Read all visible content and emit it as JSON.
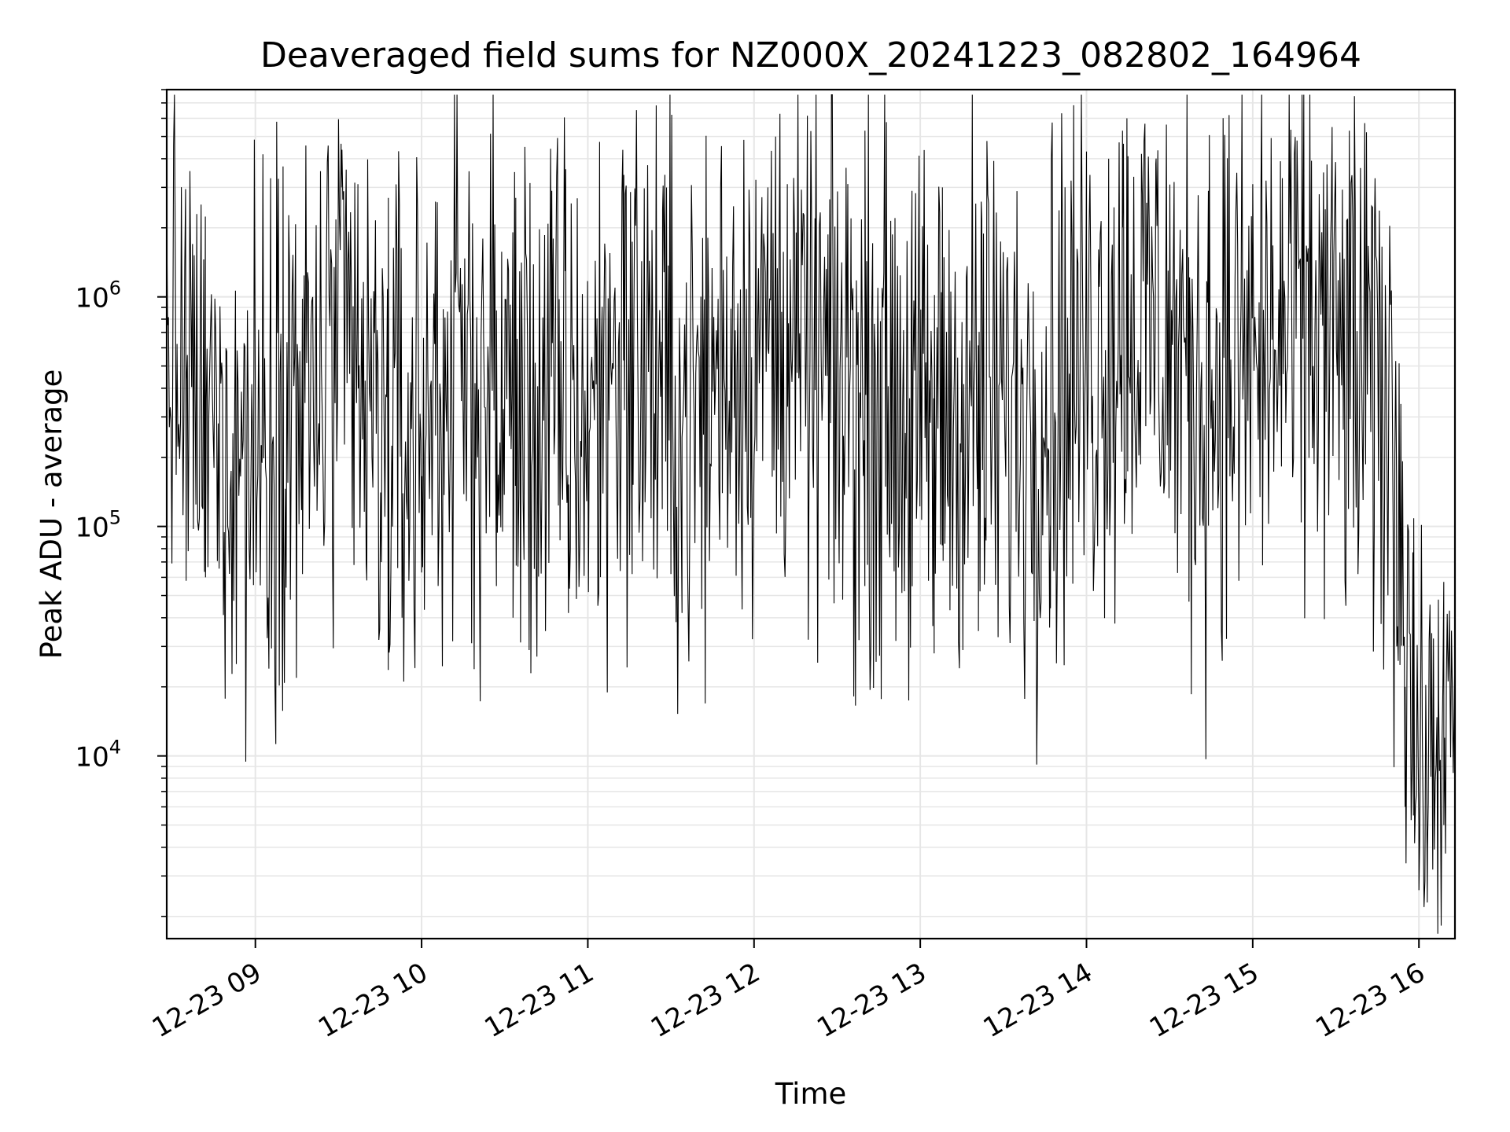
{
  "chart_data": {
    "type": "line",
    "title": "Deaveraged field sums for NZ000X_20241223_082802_164964",
    "xlabel": "Time",
    "ylabel": "Peak ADU - average",
    "yscale": "log",
    "ylim": [
      1600,
      8000000
    ],
    "xlim": [
      "2024-12-23 08:28",
      "2024-12-23 16:13"
    ],
    "grid": true,
    "line_color": "#000000",
    "grid_color": "#e6e6e6",
    "x_ticks": [
      {
        "value": "2024-12-23 09:00",
        "label": "12-23 09"
      },
      {
        "value": "2024-12-23 10:00",
        "label": "12-23 10"
      },
      {
        "value": "2024-12-23 11:00",
        "label": "12-23 11"
      },
      {
        "value": "2024-12-23 12:00",
        "label": "12-23 12"
      },
      {
        "value": "2024-12-23 13:00",
        "label": "12-23 13"
      },
      {
        "value": "2024-12-23 14:00",
        "label": "12-23 14"
      },
      {
        "value": "2024-12-23 15:00",
        "label": "12-23 15"
      },
      {
        "value": "2024-12-23 16:00",
        "label": "12-23 16"
      }
    ],
    "y_ticks": [
      {
        "value": 10000,
        "base": "10",
        "exponent": "4"
      },
      {
        "value": 100000,
        "base": "10",
        "exponent": "5"
      },
      {
        "value": 1000000,
        "base": "10",
        "exponent": "6"
      }
    ],
    "series": [
      {
        "x": [
          "2024-12-23 08:28",
          "2024-12-23 08:40",
          "2024-12-23 08:50",
          "2024-12-23 09:00",
          "2024-12-23 09:10",
          "2024-12-23 09:20",
          "2024-12-23 09:30",
          "2024-12-23 09:40",
          "2024-12-23 09:50",
          "2024-12-23 10:00",
          "2024-12-23 10:10",
          "2024-12-23 10:20",
          "2024-12-23 10:30",
          "2024-12-23 10:40",
          "2024-12-23 10:50",
          "2024-12-23 11:00",
          "2024-12-23 11:10",
          "2024-12-23 11:20",
          "2024-12-23 11:30",
          "2024-12-23 11:40",
          "2024-12-23 11:50",
          "2024-12-23 12:00",
          "2024-12-23 12:10",
          "2024-12-23 12:20",
          "2024-12-23 12:30",
          "2024-12-23 12:40",
          "2024-12-23 12:50",
          "2024-12-23 13:00",
          "2024-12-23 13:10",
          "2024-12-23 13:20",
          "2024-12-23 13:30",
          "2024-12-23 13:40",
          "2024-12-23 13:50",
          "2024-12-23 14:00",
          "2024-12-23 14:10",
          "2024-12-23 14:20",
          "2024-12-23 14:30",
          "2024-12-23 14:40",
          "2024-12-23 14:50",
          "2024-12-23 15:00",
          "2024-12-23 15:10",
          "2024-12-23 15:20",
          "2024-12-23 15:30",
          "2024-12-23 15:40",
          "2024-12-23 15:50",
          "2024-12-23 15:55",
          "2024-12-23 16:00",
          "2024-12-23 16:05",
          "2024-12-23 16:10",
          "2024-12-23 16:13"
        ],
        "values": [
          600000,
          300000,
          250000,
          220000,
          400000,
          350000,
          550000,
          300000,
          200000,
          280000,
          500000,
          450000,
          380000,
          300000,
          320000,
          280000,
          600000,
          550000,
          350000,
          300000,
          600000,
          620000,
          700000,
          500000,
          450000,
          420000,
          400000,
          250000,
          320000,
          380000,
          300000,
          320000,
          450000,
          500000,
          700000,
          800000,
          650000,
          400000,
          500000,
          550000,
          600000,
          800000,
          600000,
          450000,
          300000,
          80000,
          8000,
          10000,
          12000,
          14000
        ],
        "spread": [
          0.55,
          0.5,
          0.55,
          0.65,
          0.6,
          0.6,
          0.6,
          0.6,
          0.6,
          0.6,
          0.6,
          0.6,
          0.6,
          0.6,
          0.6,
          0.6,
          0.6,
          0.6,
          0.6,
          0.6,
          0.6,
          0.55,
          0.55,
          0.55,
          0.6,
          0.6,
          0.6,
          0.6,
          0.6,
          0.6,
          0.6,
          0.6,
          0.6,
          0.6,
          0.6,
          0.6,
          0.6,
          0.6,
          0.6,
          0.6,
          0.6,
          0.6,
          0.6,
          0.6,
          0.6,
          0.6,
          0.45,
          0.4,
          0.4,
          0.4
        ],
        "spikes": [
          {
            "x": "2024-12-23 09:10",
            "value": 3700000
          },
          {
            "x": "2024-12-23 09:31",
            "value": 3000000
          },
          {
            "x": "2024-12-23 09:37",
            "value": 3100000
          },
          {
            "x": "2024-12-23 09:48",
            "value": 2700000
          },
          {
            "x": "2024-12-23 09:52",
            "value": 2500000
          },
          {
            "x": "2024-12-23 10:05",
            "value": 2600000
          },
          {
            "x": "2024-12-23 10:12",
            "value": 3000000
          },
          {
            "x": "2024-12-23 10:34",
            "value": 2700000
          },
          {
            "x": "2024-12-23 10:47",
            "value": 2900000
          },
          {
            "x": "2024-12-23 10:52",
            "value": 3600000
          },
          {
            "x": "2024-12-23 11:13",
            "value": 3400000
          },
          {
            "x": "2024-12-23 11:17",
            "value": 2700000
          },
          {
            "x": "2024-12-23 11:27",
            "value": 2400000
          },
          {
            "x": "2024-12-23 11:48",
            "value": 3200000
          },
          {
            "x": "2024-12-23 12:05",
            "value": 3000000
          },
          {
            "x": "2024-12-23 12:12",
            "value": 3100000
          },
          {
            "x": "2024-12-23 12:22",
            "value": 2200000
          },
          {
            "x": "2024-12-23 12:35",
            "value": 2200000
          },
          {
            "x": "2024-12-23 12:57",
            "value": 2900000
          },
          {
            "x": "2024-12-23 13:08",
            "value": 3000000
          },
          {
            "x": "2024-12-23 13:22",
            "value": 2600000
          },
          {
            "x": "2024-12-23 14:00",
            "value": 4300000
          },
          {
            "x": "2024-12-23 14:08",
            "value": 4000000
          },
          {
            "x": "2024-12-23 14:13",
            "value": 5300000
          },
          {
            "x": "2024-12-23 14:15",
            "value": 4100000
          },
          {
            "x": "2024-12-23 14:25",
            "value": 3800000
          },
          {
            "x": "2024-12-23 14:44",
            "value": 2900000
          },
          {
            "x": "2024-12-23 15:00",
            "value": 3100000
          },
          {
            "x": "2024-12-23 15:10",
            "value": 3900000
          },
          {
            "x": "2024-12-23 15:16",
            "value": 4800000
          },
          {
            "x": "2024-12-23 15:24",
            "value": 2800000
          },
          {
            "x": "2024-12-23 15:37",
            "value": 2400000
          },
          {
            "x": "2024-12-23 15:44",
            "value": 2200000
          }
        ],
        "dips": [
          {
            "x": "2024-12-23 08:35",
            "value": 58000
          },
          {
            "x": "2024-12-23 08:42",
            "value": 60000
          },
          {
            "x": "2024-12-23 09:17",
            "value": 62000
          },
          {
            "x": "2024-12-23 09:40",
            "value": 70000
          },
          {
            "x": "2024-12-23 10:00",
            "value": 63000
          },
          {
            "x": "2024-12-23 10:27",
            "value": 55000
          },
          {
            "x": "2024-12-23 10:33",
            "value": 40000
          },
          {
            "x": "2024-12-23 10:53",
            "value": 42000
          },
          {
            "x": "2024-12-23 11:16",
            "value": 62000
          },
          {
            "x": "2024-12-23 11:30",
            "value": 62000
          },
          {
            "x": "2024-12-23 11:34",
            "value": 42000
          },
          {
            "x": "2024-12-23 12:32",
            "value": 48000
          },
          {
            "x": "2024-12-23 12:40",
            "value": 55000
          },
          {
            "x": "2024-12-23 13:05",
            "value": 28000
          },
          {
            "x": "2024-12-23 13:21",
            "value": 35000
          },
          {
            "x": "2024-12-23 13:47",
            "value": 44000
          },
          {
            "x": "2024-12-23 14:37",
            "value": 47000
          },
          {
            "x": "2024-12-23 14:55",
            "value": 58000
          },
          {
            "x": "2024-12-23 15:38",
            "value": 62000
          }
        ],
        "tail": [
          {
            "x": "2024-12-23 15:52",
            "value": 30000
          },
          {
            "x": "2024-12-23 15:55",
            "value": 6000
          },
          {
            "x": "2024-12-23 15:58",
            "value": 5500
          },
          {
            "x": "2024-12-23 16:00",
            "value": 2600
          },
          {
            "x": "2024-12-23 16:03",
            "value": 2300
          },
          {
            "x": "2024-12-23 16:05",
            "value": 3200
          },
          {
            "x": "2024-12-23 16:07",
            "value": 48000
          },
          {
            "x": "2024-12-23 16:09",
            "value": 5000
          },
          {
            "x": "2024-12-23 16:11",
            "value": 43000
          },
          {
            "x": "2024-12-23 16:13",
            "value": 30000
          }
        ]
      }
    ]
  }
}
